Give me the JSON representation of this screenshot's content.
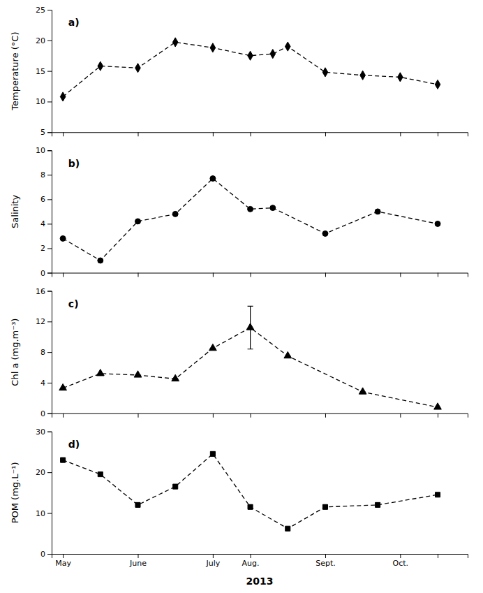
{
  "chart_data": [
    {
      "type": "line",
      "ylabel": "Temperature (°C)",
      "annotations": [
        "a)"
      ],
      "x": [
        0,
        0.5,
        1.0,
        1.5,
        2.0,
        2.5,
        2.8,
        3.0,
        3.5,
        4.0,
        4.5,
        5.0
      ],
      "values": [
        10.8,
        15.8,
        15.5,
        19.7,
        18.8,
        17.5,
        17.8,
        19.0,
        14.8,
        14.3,
        14.0,
        12.8
      ],
      "xlim": [
        -0.15,
        5.4
      ],
      "xticks": [
        0,
        1.0,
        2.0,
        2.5,
        3.5,
        4.5,
        5.0
      ],
      "ylim": [
        5,
        25
      ],
      "yticks": [
        5,
        10,
        15,
        20,
        25
      ],
      "tick_labels": "y",
      "color": "black",
      "marker": "diamond",
      "line_style": "dashed"
    },
    {
      "type": "line",
      "ylabel": "Salinity",
      "annotations": [
        "b)"
      ],
      "x": [
        0,
        0.5,
        1.0,
        1.5,
        2.0,
        2.5,
        2.8,
        3.5,
        4.2,
        5.0
      ],
      "values": [
        2.8,
        1.0,
        4.2,
        4.8,
        7.7,
        5.2,
        5.3,
        3.2,
        5.0,
        4.0
      ],
      "xlim": [
        -0.15,
        5.4
      ],
      "xticks": [
        0,
        1.0,
        2.0,
        2.5,
        3.5,
        4.5,
        5.0
      ],
      "ylim": [
        0,
        10
      ],
      "yticks": [
        0,
        2,
        4,
        6,
        8,
        10
      ],
      "tick_labels": "y",
      "color": "black",
      "marker": "circle",
      "line_style": "dashed"
    },
    {
      "type": "line",
      "ylabel": "Chl a (mg.m⁻³)",
      "annotations": [
        "c)"
      ],
      "x": [
        0,
        0.5,
        1.0,
        1.5,
        2.0,
        2.5,
        3.0,
        4.0,
        5.0
      ],
      "values": [
        3.3,
        5.2,
        5.0,
        4.5,
        8.5,
        11.2,
        7.5,
        2.8,
        0.8
      ],
      "errors": [
        0,
        0,
        0,
        0,
        0,
        2.8,
        0,
        0,
        0
      ],
      "xlim": [
        -0.15,
        5.4
      ],
      "xticks": [
        0,
        1.0,
        2.0,
        2.5,
        3.5,
        4.5,
        5.0
      ],
      "ylim": [
        0,
        16
      ],
      "yticks": [
        0,
        4,
        8,
        12,
        16
      ],
      "tick_labels": "y",
      "color": "black",
      "marker": "triangle",
      "line_style": "dashed"
    },
    {
      "type": "line",
      "ylabel": "POM (mg.L⁻¹)",
      "xlabel": "2013",
      "annotations": [
        "d)"
      ],
      "x": [
        0,
        0.5,
        1.0,
        1.5,
        2.0,
        2.5,
        3.0,
        3.5,
        4.2,
        5.0
      ],
      "values": [
        23.0,
        19.5,
        12.0,
        16.5,
        24.5,
        11.5,
        6.2,
        11.5,
        12.0,
        14.5
      ],
      "xlim": [
        -0.15,
        5.4
      ],
      "xticks": [
        {
          "value": 0,
          "label": "May"
        },
        {
          "value": 1.0,
          "label": "June"
        },
        {
          "value": 2.0,
          "label": "July"
        },
        {
          "value": 2.5,
          "label": "Aug."
        },
        {
          "value": 3.5,
          "label": "Sept."
        },
        {
          "value": 4.5,
          "label": "Oct."
        },
        {
          "value": 5.0,
          "label": null
        }
      ],
      "ylim": [
        0,
        30
      ],
      "yticks": [
        0,
        10,
        20,
        30
      ],
      "color": "black",
      "marker": "square",
      "line_style": "dashed"
    }
  ]
}
